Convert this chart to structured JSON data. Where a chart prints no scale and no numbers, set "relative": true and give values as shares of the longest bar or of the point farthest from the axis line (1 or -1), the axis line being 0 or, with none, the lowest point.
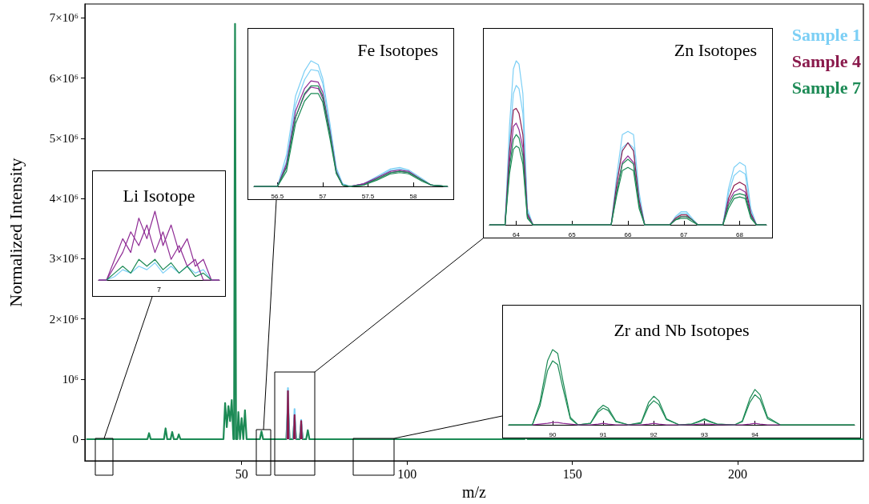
{
  "chart_data": [
    {
      "type": "line",
      "xlabel": "m/z",
      "ylabel": "Normalized Intensity",
      "xlim": [
        2.6,
        238
      ],
      "xticks": [
        50,
        100,
        150,
        200
      ],
      "ylim": [
        -360000,
        7230000
      ],
      "yticks": [
        0,
        {
          "value": 1000000,
          "label": "10⁶"
        },
        {
          "value": 2000000,
          "label": "2×10⁶"
        },
        {
          "value": 3000000,
          "label": "3×10⁶"
        },
        {
          "value": 4000000,
          "label": "4×10⁶"
        },
        {
          "value": 5000000,
          "label": "5×10⁶"
        },
        {
          "value": 6000000,
          "label": "6×10⁶"
        },
        {
          "value": 7000000,
          "label": "7×10⁶"
        }
      ],
      "series": [
        {
          "name": "Sample 1",
          "color": "#7ccff5",
          "x": [
            63.65,
            64,
            64.35,
            64.5,
            65.65,
            66,
            66.35,
            66.5,
            67.65,
            68,
            68.35
          ],
          "values": [
            0,
            850000,
            0,
            null,
            0,
            500000,
            0,
            null,
            0,
            320000,
            0
          ]
        },
        {
          "name": "Sample 4",
          "color": "#8a1a4c",
          "x": [
            63.8,
            64,
            64.2,
            64.5,
            65.8,
            66,
            66.2,
            66.5,
            67.8,
            68,
            68.2
          ],
          "values": [
            0,
            800000,
            0,
            null,
            0,
            400000,
            0,
            null,
            0,
            300000,
            0
          ]
        },
        {
          "name": "Sample 7",
          "color": "#1c8a55",
          "x": [
            3,
            21.5,
            22,
            22.5,
            26.5,
            27,
            27.5,
            28.5,
            29,
            29.5,
            30.5,
            31,
            31.5,
            44.5,
            45,
            45.5,
            46,
            46.5,
            47,
            47.5,
            47.7,
            48,
            48.3,
            48.7,
            49,
            49.5,
            50,
            50.5,
            51,
            51.5,
            55.5,
            56,
            56.5,
            63.5,
            64,
            64.5,
            65.5,
            66,
            66.5,
            67.5,
            68,
            68.5,
            69.5,
            70,
            70.5,
            135.5,
            136,
            136.5,
            238
          ],
          "values": [
            0,
            0,
            100000,
            0,
            0,
            180000,
            0,
            0,
            120000,
            0,
            0,
            80000,
            0,
            0,
            600000,
            200000,
            550000,
            300000,
            650000,
            0,
            0,
            6900000,
            0,
            0,
            450000,
            0,
            350000,
            0,
            480000,
            0,
            0,
            130000,
            0,
            0,
            550000,
            0,
            0,
            350000,
            0,
            0,
            250000,
            0,
            0,
            150000,
            0,
            0,
            30000,
            0,
            0
          ]
        }
      ]
    },
    {
      "type": "line",
      "title": "Li Isotope",
      "relative": true,
      "annotations": [
        "7"
      ],
      "categories": [
        null,
        null,
        null,
        null,
        null,
        null,
        null,
        null,
        null,
        null,
        null,
        null,
        null,
        null,
        null,
        null
      ],
      "series": [
        {
          "color": "#7ccff5",
          "values": [
            0,
            0,
            0.05,
            0.15,
            0.1,
            0.2,
            0.15,
            0.25,
            0.1,
            0.2,
            0.1,
            0.2,
            0.1,
            0.15,
            0,
            0
          ]
        },
        {
          "color": "#8e2a94",
          "values": [
            0,
            0,
            0.3,
            0.6,
            0.4,
            0.9,
            0.6,
            1.0,
            0.5,
            0.8,
            0.4,
            0.6,
            0.2,
            0.3,
            0,
            0
          ]
        },
        {
          "color": "#8e2a94",
          "values": [
            0,
            0,
            0.2,
            0.4,
            0.7,
            0.5,
            0.8,
            0.4,
            0.7,
            0.3,
            0.5,
            0.2,
            0.3,
            0,
            0,
            0
          ]
        },
        {
          "color": "#1c8a55",
          "values": [
            null,
            0,
            0.1,
            0.2,
            0.1,
            0.3,
            0.2,
            0.3,
            0.15,
            0.25,
            0.1,
            0.2,
            0.05,
            0.1,
            0,
            null
          ]
        }
      ]
    },
    {
      "type": "line",
      "title": "Fe Isotopes",
      "relative": true,
      "xlim": [
        56.24,
        58.38
      ],
      "xticks": [
        56.5,
        57,
        57.5,
        58
      ],
      "x": [
        56.24,
        56.5,
        56.6,
        56.7,
        56.8,
        56.87,
        56.95,
        57.0,
        57.08,
        57.15,
        57.22,
        57.3,
        57.45,
        57.6,
        57.75,
        57.85,
        57.95,
        58.1,
        58.2,
        58.38
      ],
      "series": [
        {
          "color": "#7ccff5",
          "values": [
            0,
            0,
            0.25,
            0.72,
            0.92,
            1.0,
            0.97,
            0.86,
            0.5,
            0.15,
            0.02,
            0,
            0.02,
            0.08,
            0.14,
            0.15,
            0.13,
            0.06,
            0.01,
            0
          ]
        },
        {
          "color": "#7ccff5",
          "values": [
            0,
            0,
            0.2,
            0.65,
            0.85,
            0.93,
            0.92,
            0.82,
            0.47,
            0.13,
            0.02,
            0,
            0.02,
            0.07,
            0.13,
            0.14,
            0.12,
            0.05,
            0.01,
            0
          ]
        },
        {
          "color": "#8e2a94",
          "values": [
            0,
            0,
            0.18,
            0.6,
            0.78,
            0.84,
            0.83,
            0.75,
            0.44,
            0.12,
            0.01,
            0,
            0.02,
            0.07,
            0.12,
            0.13,
            0.12,
            0.05,
            0.01,
            0
          ]
        },
        {
          "color": "#8e2a94",
          "values": [
            0,
            0,
            0.16,
            0.55,
            0.73,
            0.79,
            0.78,
            0.7,
            0.41,
            0.11,
            0.01,
            0,
            0.02,
            0.06,
            0.11,
            0.12,
            0.11,
            0.05,
            0.01,
            0
          ]
        },
        {
          "color": "#1c8a55",
          "values": [
            0,
            0,
            0.15,
            0.55,
            0.74,
            0.8,
            0.8,
            0.72,
            0.42,
            0.11,
            0.01,
            0,
            0.01,
            0.06,
            0.11,
            0.12,
            0.11,
            0.05,
            0.01,
            0
          ]
        },
        {
          "color": "#1c8a55",
          "values": [
            0,
            0,
            0.12,
            0.5,
            0.68,
            0.74,
            0.74,
            0.67,
            0.38,
            0.1,
            0.01,
            0,
            0.01,
            0.05,
            0.1,
            0.11,
            0.1,
            0.04,
            0.01,
            0
          ]
        }
      ]
    },
    {
      "type": "line",
      "title": "Zn Isotopes",
      "relative": true,
      "xlim": [
        63.52,
        68.48
      ],
      "xticks": [
        64,
        65,
        66,
        67,
        68
      ],
      "x": [
        63.52,
        63.8,
        63.88,
        63.95,
        64.0,
        64.05,
        64.12,
        64.2,
        64.3,
        65.7,
        65.8,
        65.9,
        66.0,
        66.1,
        66.2,
        66.3,
        66.75,
        66.85,
        66.95,
        67.05,
        67.15,
        67.25,
        67.7,
        67.8,
        67.9,
        68.0,
        68.1,
        68.2,
        68.3,
        68.48
      ],
      "series": [
        {
          "color": "#7ccff5",
          "values": [
            0,
            0,
            0.6,
            0.95,
            1.0,
            0.98,
            0.8,
            0.1,
            0,
            0,
            0.3,
            0.55,
            0.57,
            0.55,
            0.2,
            0,
            0,
            0.05,
            0.08,
            0.08,
            0.04,
            0,
            0,
            0.22,
            0.35,
            0.38,
            0.36,
            0.1,
            0,
            0
          ]
        },
        {
          "color": "#7ccff5",
          "values": [
            0,
            0,
            0.5,
            0.8,
            0.85,
            0.83,
            0.68,
            0.08,
            0,
            0,
            0.26,
            0.47,
            0.5,
            0.47,
            0.17,
            0,
            0,
            0.04,
            0.07,
            0.07,
            0.03,
            0,
            0,
            0.19,
            0.3,
            0.33,
            0.31,
            0.08,
            0,
            0
          ]
        },
        {
          "color": "#8a1a4c",
          "values": [
            0,
            0,
            0.45,
            0.7,
            0.71,
            0.68,
            0.55,
            0.07,
            0,
            0,
            0.25,
            0.45,
            0.5,
            0.45,
            0.15,
            0,
            0,
            0.04,
            0.06,
            0.06,
            0.03,
            0,
            0,
            0.16,
            0.24,
            0.26,
            0.24,
            0.07,
            0,
            0
          ]
        },
        {
          "color": "#8e2a94",
          "values": [
            0,
            0,
            0.38,
            0.6,
            0.62,
            0.58,
            0.47,
            0.06,
            0,
            0,
            0.21,
            0.38,
            0.42,
            0.38,
            0.13,
            0,
            0,
            0.03,
            0.05,
            0.05,
            0.03,
            0,
            0,
            0.14,
            0.2,
            0.22,
            0.2,
            0.06,
            0,
            0
          ]
        },
        {
          "color": "#1c8a55",
          "values": [
            0,
            0,
            0.35,
            0.52,
            0.55,
            0.53,
            0.42,
            0.05,
            0,
            0,
            0.2,
            0.37,
            0.4,
            0.37,
            0.12,
            0,
            0,
            0.03,
            0.05,
            0.05,
            0.03,
            0,
            0,
            0.12,
            0.18,
            0.19,
            0.18,
            0.05,
            0,
            0
          ]
        },
        {
          "color": "#1c8a55",
          "values": [
            0,
            0,
            0.31,
            0.46,
            0.48,
            0.47,
            0.37,
            0.04,
            0,
            0,
            0.18,
            0.33,
            0.35,
            0.33,
            0.1,
            0,
            0,
            0.03,
            0.04,
            0.04,
            0.02,
            0,
            0,
            0.1,
            0.16,
            0.17,
            0.16,
            0.04,
            0,
            0
          ]
        }
      ]
    },
    {
      "type": "line",
      "title": "Zr and Nb Isotopes",
      "relative": true,
      "xlim": [
        89.13,
        95.97
      ],
      "xticks": [
        90,
        91,
        92,
        93,
        94
      ],
      "x": [
        89.13,
        89.6,
        89.75,
        89.9,
        90.0,
        90.1,
        90.2,
        90.35,
        90.5,
        90.75,
        90.9,
        91.0,
        91.1,
        91.25,
        91.5,
        91.75,
        91.9,
        92.0,
        92.1,
        92.25,
        92.5,
        92.75,
        92.9,
        93.0,
        93.1,
        93.25,
        93.6,
        93.75,
        93.9,
        94.0,
        94.1,
        94.25,
        94.5,
        95.97
      ],
      "series": [
        {
          "color": "#1c8a55",
          "values": [
            0,
            0,
            0.3,
            0.85,
            1.0,
            0.95,
            0.6,
            0.1,
            0,
            0.02,
            0.2,
            0.26,
            0.22,
            0.05,
            0,
            0.03,
            0.3,
            0.38,
            0.32,
            0.08,
            0,
            0.01,
            0.05,
            0.08,
            0.05,
            0.01,
            0,
            0.05,
            0.35,
            0.47,
            0.4,
            0.1,
            0,
            0
          ]
        },
        {
          "color": "#1c8a55",
          "values": [
            0,
            0,
            0.25,
            0.72,
            0.85,
            0.8,
            0.5,
            0.08,
            0,
            0.02,
            0.17,
            0.22,
            0.19,
            0.04,
            0,
            0.02,
            0.25,
            0.32,
            0.27,
            0.07,
            0,
            0.01,
            0.04,
            0.07,
            0.04,
            0.01,
            0,
            0.04,
            0.3,
            0.4,
            0.34,
            0.08,
            0,
            0
          ]
        },
        {
          "color": "#8e2a94",
          "values": [
            null,
            0,
            0.01,
            0.02,
            0.03,
            0.03,
            0.02,
            0.01,
            0,
            0,
            0.01,
            0.02,
            0.01,
            0,
            0,
            0,
            0.01,
            0.02,
            0.01,
            0,
            0,
            0,
            0.01,
            0.01,
            0.01,
            0,
            0,
            0,
            0.01,
            0.02,
            0.01,
            0,
            0,
            null
          ]
        }
      ]
    }
  ]
}
